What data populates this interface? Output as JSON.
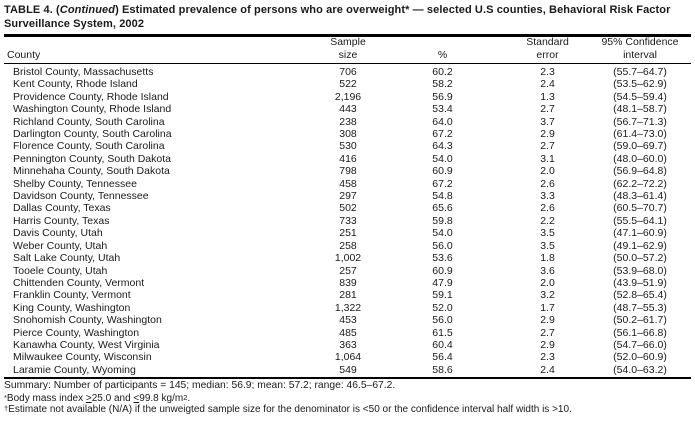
{
  "title": {
    "prefix": "TABLE 4. (",
    "continued": "Continued",
    "rest": ") Estimated prevalence of persons who are overweight* — selected U.S counties, Behavioral Risk Factor Surveillance System, 2002"
  },
  "table": {
    "headers": {
      "county": "County",
      "sample_line1": "Sample",
      "sample_line2": "size",
      "percent": "%",
      "stderr_line1": "Standard",
      "stderr_line2": "error",
      "ci_line1": "95% Confidence",
      "ci_line2": "interval"
    },
    "rows": [
      {
        "county": "Bristol County, Massachusetts",
        "sample": "706",
        "percent": "60.2",
        "stderr": "2.3",
        "ci": "(55.7–64.7)"
      },
      {
        "county": "Kent County, Rhode Island",
        "sample": "522",
        "percent": "58.2",
        "stderr": "2.4",
        "ci": "(53.5–62.9)"
      },
      {
        "county": "Providence County, Rhode Island",
        "sample": "2,196",
        "percent": "56.9",
        "stderr": "1.3",
        "ci": "(54.5–59.4)"
      },
      {
        "county": "Washington County, Rhode Island",
        "sample": "443",
        "percent": "53.4",
        "stderr": "2.7",
        "ci": "(48.1–58.7)"
      },
      {
        "county": "Richland County, South Carolina",
        "sample": "238",
        "percent": "64.0",
        "stderr": "3.7",
        "ci": "(56.7–71.3)"
      },
      {
        "county": "Darlington County, South Carolina",
        "sample": "308",
        "percent": "67.2",
        "stderr": "2.9",
        "ci": "(61.4–73.0)"
      },
      {
        "county": "Florence County, South Carolina",
        "sample": "530",
        "percent": "64.3",
        "stderr": "2.7",
        "ci": "(59.0–69.7)"
      },
      {
        "county": "Pennington County, South Dakota",
        "sample": "416",
        "percent": "54.0",
        "stderr": "3.1",
        "ci": "(48.0–60.0)"
      },
      {
        "county": "Minnehaha County, South Dakota",
        "sample": "798",
        "percent": "60.9",
        "stderr": "2.0",
        "ci": "(56.9–64.8)"
      },
      {
        "county": "Shelby County, Tennessee",
        "sample": "458",
        "percent": "67.2",
        "stderr": "2.6",
        "ci": "(62.2–72.2)"
      },
      {
        "county": "Davidson County, Tennessee",
        "sample": "297",
        "percent": "54.8",
        "stderr": "3.3",
        "ci": "(48.3–61.4)"
      },
      {
        "county": "Dallas County, Texas",
        "sample": "502",
        "percent": "65.6",
        "stderr": "2.6",
        "ci": "(60.5–70.7)"
      },
      {
        "county": "Harris County, Texas",
        "sample": "733",
        "percent": "59.8",
        "stderr": "2.2",
        "ci": "(55.5–64.1)"
      },
      {
        "county": "Davis County, Utah",
        "sample": "251",
        "percent": "54.0",
        "stderr": "3.5",
        "ci": "(47.1–60.9)"
      },
      {
        "county": "Weber County, Utah",
        "sample": "258",
        "percent": "56.0",
        "stderr": "3.5",
        "ci": "(49.1–62.9)"
      },
      {
        "county": "Salt Lake County, Utah",
        "sample": "1,002",
        "percent": "53.6",
        "stderr": "1.8",
        "ci": "(50.0–57.2)"
      },
      {
        "county": "Tooele County, Utah",
        "sample": "257",
        "percent": "60.9",
        "stderr": "3.6",
        "ci": "(53.9–68.0)"
      },
      {
        "county": "Chittenden County, Vermont",
        "sample": "839",
        "percent": "47.9",
        "stderr": "2.0",
        "ci": "(43.9–51.9)"
      },
      {
        "county": "Franklin County, Vermont",
        "sample": "281",
        "percent": "59.1",
        "stderr": "3.2",
        "ci": "(52.8–65.4)"
      },
      {
        "county": "King County, Washington",
        "sample": "1,322",
        "percent": "52.0",
        "stderr": "1.7",
        "ci": "(48.7–55.3)"
      },
      {
        "county": "Snohomish County, Washington",
        "sample": "453",
        "percent": "56.0",
        "stderr": "2.9",
        "ci": "(50.2–61.7)"
      },
      {
        "county": "Pierce County, Washington",
        "sample": "485",
        "percent": "61.5",
        "stderr": "2.7",
        "ci": "(56.1–66.8)"
      },
      {
        "county": "Kanawha County, West Virginia",
        "sample": "363",
        "percent": "60.4",
        "stderr": "2.9",
        "ci": "(54.7–66.0)"
      },
      {
        "county": "Milwaukee County, Wisconsin",
        "sample": "1,064",
        "percent": "56.4",
        "stderr": "2.3",
        "ci": "(52.0–60.9)"
      },
      {
        "county": "Laramie County, Wyoming",
        "sample": "549",
        "percent": "58.6",
        "stderr": "2.4",
        "ci": "(54.0–63.2)"
      }
    ]
  },
  "summary": "Summary: Number of participants = 145; median: 56.9; mean: 57.2; range: 46.5–67.2.",
  "footnotes": {
    "asterisk": {
      "marker": "*",
      "text1": "Body mass index ",
      "ge_symbol": ">",
      "text2": "25.0 and ",
      "le_symbol": "<",
      "text3": "99.8 kg/m",
      "superscript": "2",
      "text4": "."
    },
    "dagger": {
      "marker": "†",
      "text": "Estimate not available (N/A) if the unweigted sample size for the denominator is <50 or the confidence interval half width is >10."
    }
  }
}
